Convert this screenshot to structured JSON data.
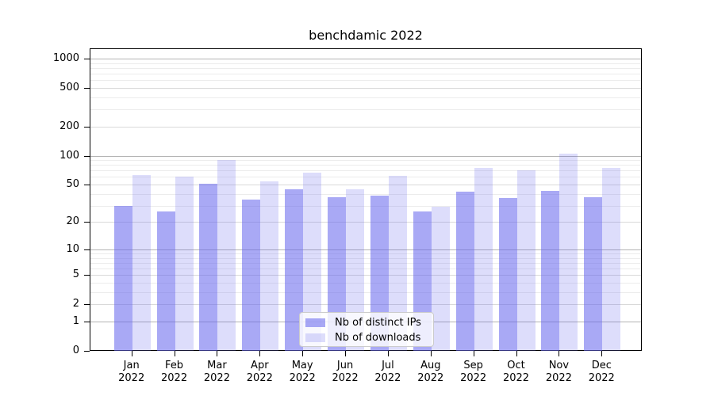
{
  "chart_data": {
    "type": "bar",
    "title": "benchdamic 2022",
    "year": "2022",
    "categories": [
      "Jan",
      "Feb",
      "Mar",
      "Apr",
      "May",
      "Jun",
      "Jul",
      "Aug",
      "Sep",
      "Oct",
      "Nov",
      "Dec"
    ],
    "series": [
      {
        "name": "Nb of distinct IPs",
        "color": "#6363ed",
        "alpha": 0.55,
        "values": [
          30,
          26,
          51,
          35,
          45,
          37,
          38,
          26,
          42,
          36,
          43,
          37
        ]
      },
      {
        "name": "Nb of downloads",
        "color": "#6363ed",
        "alpha": 0.22,
        "values": [
          63,
          61,
          90,
          54,
          67,
          45,
          62,
          29,
          74,
          70,
          105,
          75
        ]
      }
    ],
    "yticks": [
      0,
      1,
      2,
      5,
      10,
      20,
      50,
      100,
      200,
      500,
      1000
    ],
    "ylim": [
      0,
      1276
    ],
    "yscale": "log1p",
    "grid": "horizontal",
    "legend": {
      "position": "lower center"
    },
    "colors": {
      "grid_major": "#b3b3b3",
      "grid_labeled": "#d9d9d9",
      "grid_minor": "#ececec",
      "axis": "#000000"
    }
  }
}
